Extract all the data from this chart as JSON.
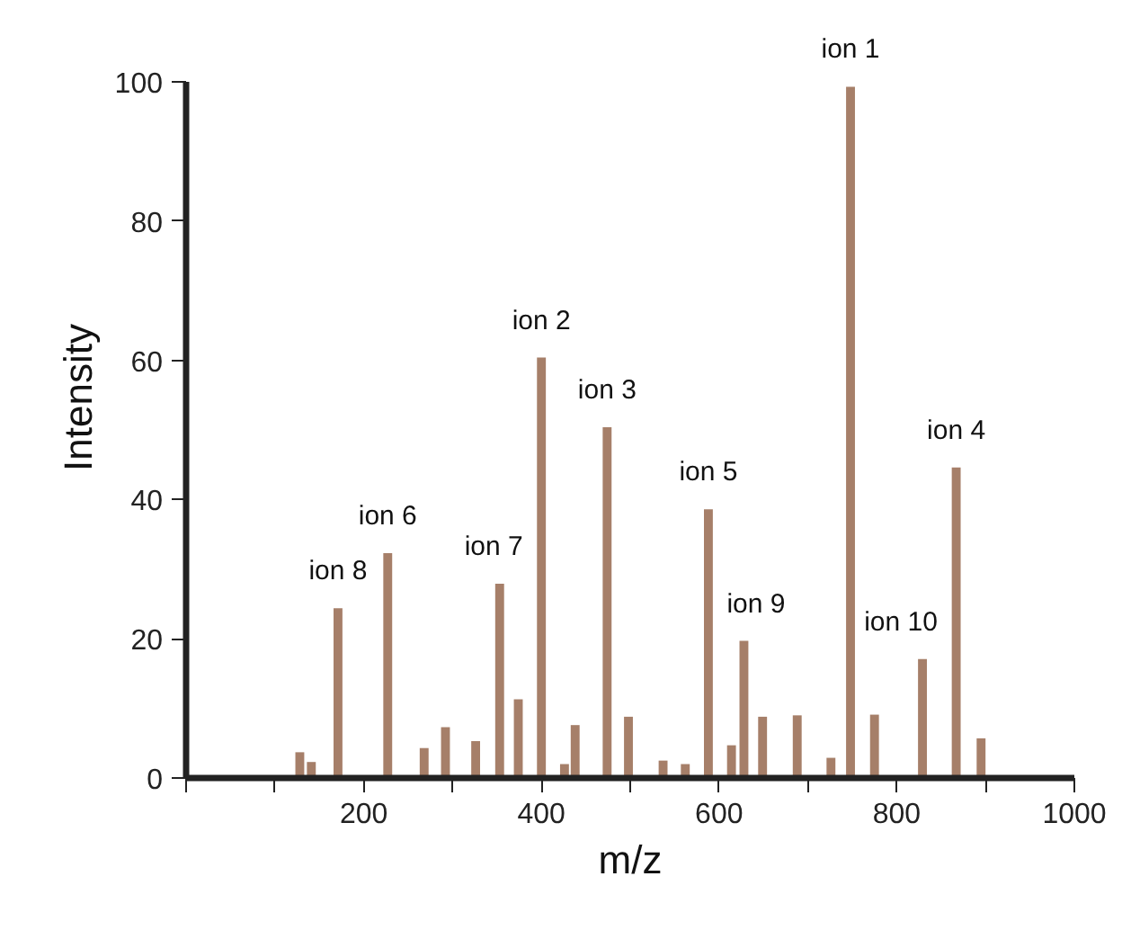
{
  "chart_data": {
    "type": "bar",
    "xlabel": "m/z",
    "ylabel": "Intensity",
    "x": [
      128,
      141,
      171,
      227,
      268,
      292,
      326,
      353,
      374,
      400,
      426,
      438,
      474,
      498,
      537,
      562,
      588,
      614,
      628,
      649,
      688,
      726,
      748,
      775,
      829,
      867,
      895
    ],
    "values": [
      3.7,
      2.3,
      24.4,
      32.3,
      4.3,
      7.3,
      5.3,
      27.9,
      11.3,
      60.4,
      2.0,
      7.6,
      50.4,
      8.8,
      2.5,
      2.0,
      38.6,
      4.7,
      19.7,
      8.8,
      9.0,
      2.9,
      99.3,
      9.1,
      17.1,
      44.6,
      5.7
    ],
    "color": "#a67f69",
    "xlim": [
      0,
      1000
    ],
    "xticks": [
      {
        "value": 0,
        "label": null
      },
      {
        "value": 100,
        "label": null
      },
      200,
      {
        "value": 300,
        "label": null
      },
      400,
      {
        "value": 500,
        "label": null
      },
      600,
      {
        "value": 700,
        "label": null
      },
      800,
      {
        "value": 900,
        "label": null
      },
      1000
    ],
    "ylim": [
      0,
      100
    ],
    "yticks": [
      0,
      20,
      40,
      60,
      80,
      100
    ],
    "grid": false,
    "annotations": [
      {
        "text": "ion 1",
        "x": 748,
        "y": 99.3
      },
      {
        "text": "ion 2",
        "x": 400,
        "y": 60.4
      },
      {
        "text": "ion 3",
        "x": 474,
        "y": 50.4
      },
      {
        "text": "ion 4",
        "x": 867,
        "y": 44.6
      },
      {
        "text": "ion 5",
        "x": 588,
        "y": 38.6
      },
      {
        "text": "ion 6",
        "x": 227,
        "y": 32.3
      },
      {
        "text": "ion 7",
        "x": 353,
        "y": 27.9
      },
      {
        "text": "ion 8",
        "x": 171,
        "y": 24.4
      },
      {
        "text": "ion 9",
        "x": 628,
        "y": 19.7
      },
      {
        "text": "ion 10",
        "x": 829,
        "y": 17.1
      }
    ]
  }
}
